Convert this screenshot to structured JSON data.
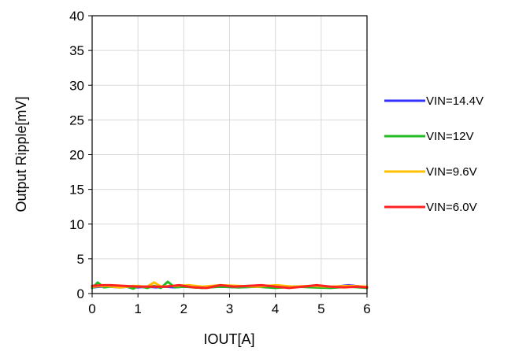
{
  "chart_data": {
    "type": "line",
    "xlabel": "IOUT[A]",
    "ylabel": "Output Ripple[mV]",
    "xlim": [
      0,
      6
    ],
    "ylim": [
      0,
      40
    ],
    "xticks": [
      "0",
      "1",
      "2",
      "3",
      "4",
      "5",
      "6"
    ],
    "yticks": [
      "0",
      "5",
      "10",
      "15",
      "20",
      "25",
      "30",
      "35",
      "40"
    ],
    "grid": true,
    "legend_position": "right",
    "series": [
      {
        "name": "VIN=14.4V",
        "color": "#3333ff",
        "x": [
          0,
          0.2,
          0.4,
          0.6,
          0.8,
          1.0,
          1.2,
          1.4,
          1.6,
          1.8,
          2.0,
          2.4,
          2.8,
          3.2,
          3.6,
          4.0,
          4.4,
          4.8,
          5.2,
          5.6,
          6.0
        ],
        "y": [
          0.9,
          1.0,
          1.0,
          0.9,
          1.0,
          0.9,
          1.0,
          0.9,
          1.0,
          0.9,
          1.0,
          0.9,
          1.0,
          0.9,
          1.0,
          0.9,
          1.0,
          1.0,
          0.9,
          1.2,
          0.9
        ]
      },
      {
        "name": "VIN=12V",
        "color": "#22bb22",
        "x": [
          0,
          0.12,
          0.25,
          0.4,
          0.6,
          0.75,
          0.9,
          1.0,
          1.2,
          1.35,
          1.5,
          1.65,
          1.8,
          2.0,
          2.4,
          2.8,
          3.2,
          3.6,
          4.0,
          4.4,
          4.8,
          5.2,
          5.6,
          6.0
        ],
        "y": [
          0.8,
          1.6,
          0.9,
          1.0,
          0.9,
          1.0,
          0.7,
          1.1,
          0.8,
          1.1,
          0.8,
          1.7,
          0.9,
          1.0,
          0.8,
          1.0,
          0.9,
          1.0,
          0.8,
          1.0,
          0.9,
          0.8,
          1.0,
          0.8
        ]
      },
      {
        "name": "VIN=9.6V",
        "color": "#ffc000",
        "x": [
          0,
          0.3,
          0.6,
          0.9,
          1.2,
          1.35,
          1.5,
          1.8,
          2.1,
          2.4,
          2.8,
          3.2,
          3.6,
          4.0,
          4.4,
          4.8,
          5.2,
          5.6,
          6.0
        ],
        "y": [
          1.0,
          1.1,
          0.9,
          1.1,
          1.0,
          1.6,
          1.0,
          1.1,
          1.2,
          1.0,
          1.2,
          1.1,
          1.0,
          1.2,
          1.0,
          1.1,
          1.0,
          1.1,
          1.0
        ]
      },
      {
        "name": "VIN=6.0V",
        "color": "#ff2222",
        "x": [
          0,
          0.2,
          0.4,
          0.7,
          1.0,
          1.3,
          1.6,
          1.9,
          2.2,
          2.5,
          2.8,
          3.1,
          3.4,
          3.7,
          4.0,
          4.3,
          4.6,
          4.9,
          5.2,
          5.5,
          5.8,
          6.0
        ],
        "y": [
          1.1,
          1.2,
          1.2,
          1.1,
          1.0,
          1.0,
          1.0,
          1.2,
          0.9,
          0.8,
          1.2,
          1.0,
          1.1,
          1.2,
          1.0,
          0.8,
          1.0,
          1.2,
          1.0,
          0.9,
          1.0,
          0.9
        ]
      }
    ]
  }
}
